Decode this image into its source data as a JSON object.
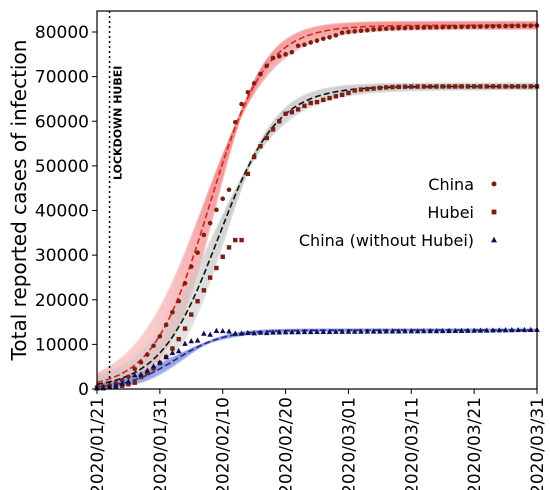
{
  "chart_data": {
    "type": "scatter",
    "ylabel": "Total reported cases of infection",
    "xlabel": "",
    "x_ticks": [
      "2020/01/21",
      "2020/01/31",
      "2020/02/10",
      "2020/02/20",
      "2020/03/01",
      "2020/03/11",
      "2020/03/21",
      "2020/03/31"
    ],
    "ylim": [
      0,
      85000
    ],
    "y_ticks": [
      0,
      10000,
      20000,
      30000,
      40000,
      50000,
      60000,
      70000,
      80000
    ],
    "y_tick_labels": [
      "0",
      "10000",
      "20000",
      "30000",
      "40000",
      "50000",
      "60000",
      "70000",
      "80000"
    ],
    "x_start": "2020/01/21",
    "x_range_days": [
      0,
      70
    ],
    "grid": false,
    "legend_position": "center-right",
    "annotation": {
      "text": "LOCKDOWN HUBEI",
      "x": "2020/01/23"
    },
    "series": [
      {
        "name": "China",
        "marker": "circle",
        "color": "#e8362a",
        "marker_color": "#7a1f12",
        "fit": {
          "K": 81500,
          "r": 0.225,
          "t0": 17.8
        },
        "days": [
          0,
          1,
          2,
          3,
          4,
          5,
          6,
          7,
          8,
          9,
          10,
          11,
          12,
          13,
          14,
          15,
          16,
          17,
          18,
          19,
          20,
          21,
          22,
          23,
          24,
          25,
          26,
          27,
          28,
          29,
          30,
          31,
          32,
          33,
          34,
          35,
          36,
          37,
          38,
          39,
          40,
          41,
          42,
          43,
          44,
          45,
          46,
          47,
          48,
          49,
          50,
          51,
          52,
          53,
          54,
          55,
          56,
          57,
          58,
          59,
          60,
          61,
          62,
          63,
          64,
          65,
          66,
          67,
          68,
          69,
          70
        ],
        "values": [
          440,
          570,
          830,
          1290,
          1980,
          2740,
          4510,
          5970,
          7710,
          9690,
          11790,
          14380,
          17200,
          19690,
          23680,
          27410,
          30550,
          34540,
          37160,
          40150,
          42640,
          44650,
          59800,
          63850,
          66490,
          68500,
          70550,
          72430,
          74180,
          74570,
          75000,
          75470,
          76920,
          77150,
          77660,
          78060,
          78490,
          78820,
          79250,
          79820,
          80020,
          80150,
          80270,
          80400,
          80550,
          80650,
          80730,
          80800,
          80860,
          80900,
          80930,
          80970,
          81000,
          81030,
          81050,
          81080,
          81100,
          81120,
          81150,
          81170,
          81200,
          81220,
          81250,
          81280,
          81300,
          81330,
          81350,
          81380,
          81400,
          81420,
          81450
        ]
      },
      {
        "name": "Hubei",
        "marker": "square",
        "color": "#9a9a9a",
        "marker_color": "#7a1f12",
        "fit": {
          "K": 67800,
          "r": 0.215,
          "t0": 19.3
        },
        "days": [
          0,
          1,
          2,
          3,
          4,
          5,
          6,
          7,
          8,
          9,
          10,
          11,
          12,
          13,
          14,
          15,
          16,
          17,
          18,
          19,
          20,
          21,
          22,
          23,
          24,
          25,
          26,
          27,
          28,
          29,
          30,
          31,
          32,
          33,
          34,
          35,
          36,
          37,
          38,
          39,
          40,
          41,
          42,
          43,
          44,
          45,
          46,
          47,
          48,
          49,
          50,
          51,
          52,
          53,
          54,
          55,
          56,
          57,
          58,
          59,
          60,
          61,
          62,
          63,
          64,
          65,
          66,
          67,
          68,
          69,
          70
        ],
        "values": [
          270,
          375,
          444,
          549,
          729,
          1052,
          1423,
          2714,
          3554,
          4586,
          5806,
          7153,
          9074,
          11177,
          13522,
          16678,
          19665,
          22112,
          24953,
          27100,
          29631,
          31728,
          33366,
          33366,
          48206,
          51986,
          54406,
          56249,
          58182,
          59989,
          61682,
          62031,
          62662,
          63454,
          64084,
          64287,
          64786,
          65187,
          65596,
          65914,
          66337,
          66907,
          67103,
          67217,
          67332,
          67466,
          67592,
          67666,
          67707,
          67743,
          67760,
          67773,
          67781,
          67786,
          67790,
          67794,
          67798,
          67799,
          67800,
          67800,
          67801,
          67801,
          67801,
          67801,
          67801,
          67801,
          67801,
          67801,
          67801,
          67802,
          67802
        ]
      },
      {
        "name": "China (without Hubei)",
        "marker": "triangle",
        "color": "#2a34b8",
        "marker_color": "#0d1050",
        "fit": {
          "K": 13200,
          "r": 0.26,
          "t0": 12.5
        },
        "days": [
          0,
          1,
          2,
          3,
          4,
          5,
          6,
          7,
          8,
          9,
          10,
          11,
          12,
          13,
          14,
          15,
          16,
          17,
          18,
          19,
          20,
          21,
          22,
          23,
          24,
          25,
          26,
          27,
          28,
          29,
          30,
          31,
          32,
          33,
          34,
          35,
          36,
          37,
          38,
          39,
          40,
          41,
          42,
          43,
          44,
          45,
          46,
          47,
          48,
          49,
          50,
          51,
          52,
          53,
          54,
          55,
          56,
          57,
          58,
          59,
          60,
          61,
          62,
          63,
          64,
          65,
          66,
          67,
          68,
          69,
          70
        ],
        "values": [
          170,
          195,
          386,
          741,
          1251,
          1688,
          3087,
          3256,
          4156,
          5104,
          5984,
          7227,
          8126,
          8513,
          10158,
          10732,
          10885,
          12428,
          12207,
          13050,
          13009,
          12922,
          12434,
          12440,
          12584,
          12514,
          12644,
          12574,
          12680,
          12710,
          12730,
          12750,
          12770,
          12790,
          12800,
          12810,
          12820,
          12830,
          12840,
          12850,
          12860,
          12870,
          12880,
          12890,
          12900,
          12910,
          12920,
          12930,
          12940,
          12950,
          12960,
          12970,
          12980,
          12990,
          13000,
          13010,
          13020,
          13030,
          13050,
          13070,
          13090,
          13110,
          13130,
          13150,
          13170,
          13190,
          13210,
          13230,
          13250,
          13270,
          13300
        ]
      }
    ]
  }
}
